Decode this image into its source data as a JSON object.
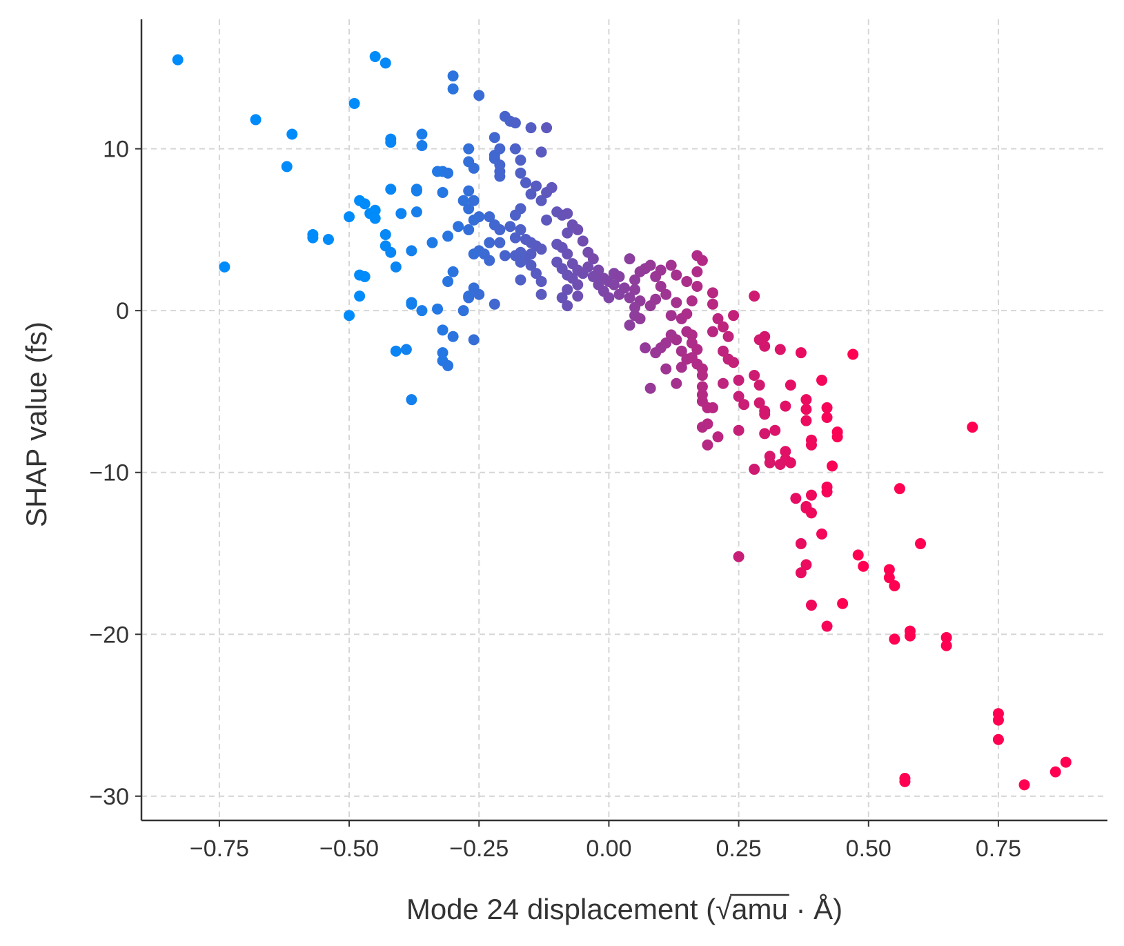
{
  "chart_data": {
    "type": "scatter",
    "title": "",
    "xlabel": "Mode 24 displacement (√amu · Å)",
    "xlabel_parts": {
      "before": "Mode 24 displacement (",
      "radicand": "amu",
      "after": " · Å)"
    },
    "ylabel": "SHAP value (fs)",
    "xlim": [
      -0.9,
      0.96
    ],
    "ylim": [
      -31.5,
      18
    ],
    "x_ticks": [
      -0.75,
      -0.5,
      -0.25,
      0.0,
      0.25,
      0.5,
      0.75
    ],
    "x_tick_labels": [
      "−0.75",
      "−0.50",
      "−0.25",
      "0.00",
      "0.25",
      "0.50",
      "0.75"
    ],
    "y_ticks": [
      10,
      0,
      -10,
      -20,
      -30
    ],
    "y_tick_labels": [
      "10",
      "0",
      "−10",
      "−20",
      "−30"
    ],
    "grid": true,
    "color_scale": {
      "low": "#008bfb",
      "high": "#ff0052",
      "cmin": -0.45,
      "cmax": 0.45
    },
    "points": [
      [
        -0.83,
        15.5
      ],
      [
        -0.45,
        15.7
      ],
      [
        -0.43,
        15.3
      ],
      [
        -0.3,
        14.5
      ],
      [
        -0.3,
        13.7
      ],
      [
        -0.25,
        13.3
      ],
      [
        -0.49,
        12.8
      ],
      [
        -0.68,
        11.8
      ],
      [
        -0.61,
        10.9
      ],
      [
        -0.62,
        8.9
      ],
      [
        -0.74,
        2.7
      ],
      [
        -0.57,
        4.7
      ],
      [
        -0.57,
        4.5
      ],
      [
        -0.54,
        4.4
      ],
      [
        -0.5,
        5.8
      ],
      [
        -0.48,
        6.8
      ],
      [
        -0.47,
        6.6
      ],
      [
        -0.46,
        6.0
      ],
      [
        -0.45,
        6.2
      ],
      [
        -0.45,
        5.7
      ],
      [
        -0.43,
        4.7
      ],
      [
        -0.43,
        4.0
      ],
      [
        -0.42,
        3.6
      ],
      [
        -0.41,
        2.7
      ],
      [
        -0.48,
        2.2
      ],
      [
        -0.47,
        2.1
      ],
      [
        -0.48,
        0.9
      ],
      [
        -0.5,
        -0.3
      ],
      [
        -0.42,
        10.6
      ],
      [
        -0.42,
        10.4
      ],
      [
        -0.42,
        7.5
      ],
      [
        -0.4,
        6.0
      ],
      [
        -0.36,
        10.9
      ],
      [
        -0.36,
        10.2
      ],
      [
        -0.37,
        7.5
      ],
      [
        -0.37,
        7.4
      ],
      [
        -0.37,
        6.1
      ],
      [
        -0.38,
        3.7
      ],
      [
        -0.38,
        0.5
      ],
      [
        -0.38,
        0.4
      ],
      [
        -0.36,
        0.0
      ],
      [
        -0.34,
        4.2
      ],
      [
        -0.33,
        8.6
      ],
      [
        -0.32,
        8.6
      ],
      [
        -0.31,
        8.5
      ],
      [
        -0.32,
        7.3
      ],
      [
        -0.31,
        4.6
      ],
      [
        -0.3,
        2.4
      ],
      [
        -0.31,
        1.8
      ],
      [
        -0.33,
        0.1
      ],
      [
        -0.32,
        -1.2
      ],
      [
        -0.3,
        -1.6
      ],
      [
        -0.32,
        -2.6
      ],
      [
        -0.32,
        -3.1
      ],
      [
        -0.31,
        -3.4
      ],
      [
        -0.41,
        -2.5
      ],
      [
        -0.39,
        -2.4
      ],
      [
        -0.38,
        -5.5
      ],
      [
        -0.27,
        10.0
      ],
      [
        -0.27,
        9.2
      ],
      [
        -0.26,
        8.8
      ],
      [
        -0.27,
        7.4
      ],
      [
        -0.26,
        6.8
      ],
      [
        -0.27,
        6.3
      ],
      [
        -0.25,
        5.8
      ],
      [
        -0.26,
        5.6
      ],
      [
        -0.27,
        5.0
      ],
      [
        -0.28,
        6.8
      ],
      [
        -0.29,
        5.2
      ],
      [
        -0.25,
        3.7
      ],
      [
        -0.26,
        3.5
      ],
      [
        -0.26,
        1.4
      ],
      [
        -0.25,
        1.0
      ],
      [
        -0.27,
        0.9
      ],
      [
        -0.27,
        0.8
      ],
      [
        -0.28,
        0.0
      ],
      [
        -0.26,
        -1.8
      ],
      [
        -0.22,
        10.7
      ],
      [
        -0.21,
        10.0
      ],
      [
        -0.22,
        9.6
      ],
      [
        -0.22,
        9.4
      ],
      [
        -0.21,
        9.0
      ],
      [
        -0.21,
        8.6
      ],
      [
        -0.21,
        8.3
      ],
      [
        -0.23,
        5.8
      ],
      [
        -0.22,
        5.3
      ],
      [
        -0.21,
        5.0
      ],
      [
        -0.23,
        4.2
      ],
      [
        -0.21,
        4.2
      ],
      [
        -0.2,
        3.4
      ],
      [
        -0.24,
        3.5
      ],
      [
        -0.23,
        3.1
      ],
      [
        -0.22,
        0.4
      ],
      [
        -0.2,
        12.0
      ],
      [
        -0.19,
        11.7
      ],
      [
        -0.18,
        11.6
      ],
      [
        -0.18,
        10.0
      ],
      [
        -0.17,
        9.3
      ],
      [
        -0.15,
        11.3
      ],
      [
        -0.12,
        11.3
      ],
      [
        -0.13,
        9.8
      ],
      [
        -0.17,
        8.5
      ],
      [
        -0.16,
        7.9
      ],
      [
        -0.14,
        7.7
      ],
      [
        -0.15,
        7.2
      ],
      [
        -0.13,
        6.8
      ],
      [
        -0.12,
        7.3
      ],
      [
        -0.11,
        7.6
      ],
      [
        -0.12,
        5.6
      ],
      [
        -0.17,
        6.3
      ],
      [
        -0.18,
        5.9
      ],
      [
        -0.19,
        5.2
      ],
      [
        -0.17,
        5.0
      ],
      [
        -0.18,
        4.5
      ],
      [
        -0.16,
        4.4
      ],
      [
        -0.15,
        4.2
      ],
      [
        -0.14,
        4.0
      ],
      [
        -0.13,
        3.8
      ],
      [
        -0.15,
        3.5
      ],
      [
        -0.16,
        3.3
      ],
      [
        -0.17,
        3.6
      ],
      [
        -0.18,
        3.4
      ],
      [
        -0.17,
        3.0
      ],
      [
        -0.15,
        2.8
      ],
      [
        -0.14,
        2.3
      ],
      [
        -0.13,
        1.8
      ],
      [
        -0.17,
        1.9
      ],
      [
        -0.13,
        1.0
      ],
      [
        -0.1,
        6.1
      ],
      [
        -0.09,
        5.9
      ],
      [
        -0.08,
        6.0
      ],
      [
        -0.07,
        5.3
      ],
      [
        -0.06,
        5.0
      ],
      [
        -0.08,
        4.8
      ],
      [
        -0.1,
        4.1
      ],
      [
        -0.09,
        3.9
      ],
      [
        -0.08,
        3.5
      ],
      [
        -0.1,
        3.0
      ],
      [
        -0.09,
        2.6
      ],
      [
        -0.07,
        2.9
      ],
      [
        -0.06,
        2.5
      ],
      [
        -0.08,
        2.2
      ],
      [
        -0.07,
        2.0
      ],
      [
        -0.05,
        2.3
      ],
      [
        -0.06,
        1.6
      ],
      [
        -0.08,
        1.3
      ],
      [
        -0.09,
        0.8
      ],
      [
        -0.06,
        0.9
      ],
      [
        -0.08,
        0.3
      ],
      [
        -0.05,
        4.3
      ],
      [
        -0.04,
        3.6
      ],
      [
        -0.03,
        3.2
      ],
      [
        -0.04,
        2.7
      ],
      [
        -0.02,
        2.5
      ],
      [
        -0.03,
        2.1
      ],
      [
        -0.01,
        2.0
      ],
      [
        -0.02,
        1.6
      ],
      [
        -0.01,
        1.2
      ],
      [
        0.0,
        1.8
      ],
      [
        0.01,
        2.3
      ],
      [
        0.02,
        2.1
      ],
      [
        0.01,
        1.6
      ],
      [
        0.03,
        1.4
      ],
      [
        0.02,
        1.0
      ],
      [
        0.04,
        0.8
      ],
      [
        0.0,
        0.8
      ],
      [
        0.05,
        1.9
      ],
      [
        0.04,
        3.2
      ],
      [
        0.06,
        2.4
      ],
      [
        0.07,
        2.6
      ],
      [
        0.08,
        2.8
      ],
      [
        0.05,
        1.3
      ],
      [
        0.06,
        0.6
      ],
      [
        0.05,
        0.2
      ],
      [
        0.05,
        -0.3
      ],
      [
        0.06,
        -0.5
      ],
      [
        0.04,
        -0.9
      ],
      [
        0.08,
        0.3
      ],
      [
        0.09,
        0.7
      ],
      [
        0.09,
        2.1
      ],
      [
        0.1,
        2.5
      ],
      [
        0.1,
        1.5
      ],
      [
        0.11,
        1.0
      ],
      [
        0.12,
        2.8
      ],
      [
        0.13,
        2.2
      ],
      [
        0.13,
        0.5
      ],
      [
        0.12,
        -0.3
      ],
      [
        0.14,
        -0.5
      ],
      [
        0.12,
        -1.5
      ],
      [
        0.13,
        -1.8
      ],
      [
        0.11,
        -2.0
      ],
      [
        0.1,
        -2.3
      ],
      [
        0.09,
        -2.6
      ],
      [
        0.07,
        -2.3
      ],
      [
        0.08,
        -4.8
      ],
      [
        0.11,
        -3.6
      ],
      [
        0.14,
        -2.5
      ],
      [
        0.15,
        -3.0
      ],
      [
        0.14,
        -3.5
      ],
      [
        0.13,
        -4.5
      ],
      [
        0.15,
        -1.3
      ],
      [
        0.16,
        -1.5
      ],
      [
        0.15,
        -0.2
      ],
      [
        0.16,
        0.6
      ],
      [
        0.15,
        1.8
      ],
      [
        0.17,
        1.5
      ],
      [
        0.17,
        2.4
      ],
      [
        0.17,
        3.4
      ],
      [
        0.18,
        3.1
      ],
      [
        0.16,
        -2.0
      ],
      [
        0.17,
        -2.4
      ],
      [
        0.16,
        -2.9
      ],
      [
        0.17,
        -3.3
      ],
      [
        0.18,
        -3.6
      ],
      [
        0.18,
        -4.0
      ],
      [
        0.18,
        -4.7
      ],
      [
        0.18,
        -5.2
      ],
      [
        0.18,
        -5.6
      ],
      [
        0.19,
        -6.0
      ],
      [
        0.2,
        -6.0
      ],
      [
        0.19,
        -7.0
      ],
      [
        0.18,
        -7.2
      ],
      [
        0.19,
        -8.3
      ],
      [
        0.21,
        -7.8
      ],
      [
        0.2,
        1.1
      ],
      [
        0.2,
        0.4
      ],
      [
        0.21,
        -0.5
      ],
      [
        0.2,
        -1.3
      ],
      [
        0.22,
        -1.0
      ],
      [
        0.23,
        -1.6
      ],
      [
        0.22,
        -2.5
      ],
      [
        0.23,
        -3.0
      ],
      [
        0.24,
        -3.2
      ],
      [
        0.22,
        -4.5
      ],
      [
        0.24,
        -0.3
      ],
      [
        0.25,
        -4.3
      ],
      [
        0.25,
        -5.3
      ],
      [
        0.26,
        -5.8
      ],
      [
        0.25,
        -7.4
      ],
      [
        0.25,
        -15.2
      ],
      [
        0.28,
        0.9
      ],
      [
        0.28,
        -4.0
      ],
      [
        0.29,
        -4.6
      ],
      [
        0.29,
        -1.8
      ],
      [
        0.3,
        -1.6
      ],
      [
        0.3,
        -2.2
      ],
      [
        0.29,
        -5.7
      ],
      [
        0.3,
        -6.2
      ],
      [
        0.3,
        -6.4
      ],
      [
        0.3,
        -7.6
      ],
      [
        0.31,
        -9.0
      ],
      [
        0.31,
        -9.4
      ],
      [
        0.28,
        -9.8
      ],
      [
        0.32,
        -7.4
      ],
      [
        0.33,
        -2.4
      ],
      [
        0.34,
        -5.9
      ],
      [
        0.35,
        -4.6
      ],
      [
        0.34,
        -8.7
      ],
      [
        0.34,
        -9.2
      ],
      [
        0.33,
        -9.5
      ],
      [
        0.35,
        -9.4
      ],
      [
        0.36,
        -11.6
      ],
      [
        0.37,
        -14.4
      ],
      [
        0.37,
        -16.2
      ],
      [
        0.38,
        -15.7
      ],
      [
        0.38,
        -12.1
      ],
      [
        0.38,
        -12.2
      ],
      [
        0.39,
        -12.5
      ],
      [
        0.39,
        -11.4
      ],
      [
        0.39,
        -8.0
      ],
      [
        0.39,
        -8.3
      ],
      [
        0.38,
        -6.8
      ],
      [
        0.38,
        -5.5
      ],
      [
        0.38,
        -6.1
      ],
      [
        0.37,
        -2.6
      ],
      [
        0.39,
        -18.2
      ],
      [
        0.41,
        -4.3
      ],
      [
        0.41,
        -13.8
      ],
      [
        0.42,
        -6.0
      ],
      [
        0.42,
        -6.6
      ],
      [
        0.42,
        -10.9
      ],
      [
        0.42,
        -11.2
      ],
      [
        0.43,
        -9.6
      ],
      [
        0.44,
        -7.5
      ],
      [
        0.44,
        -7.8
      ],
      [
        0.42,
        -19.5
      ],
      [
        0.45,
        -18.1
      ],
      [
        0.47,
        -2.7
      ],
      [
        0.48,
        -15.1
      ],
      [
        0.49,
        -15.8
      ],
      [
        0.54,
        -16.0
      ],
      [
        0.54,
        -16.5
      ],
      [
        0.55,
        -17.0
      ],
      [
        0.55,
        -20.3
      ],
      [
        0.56,
        -11.0
      ],
      [
        0.57,
        -28.9
      ],
      [
        0.57,
        -29.1
      ],
      [
        0.58,
        -19.8
      ],
      [
        0.58,
        -20.1
      ],
      [
        0.6,
        -14.4
      ],
      [
        0.65,
        -20.2
      ],
      [
        0.65,
        -20.7
      ],
      [
        0.7,
        -7.2
      ],
      [
        0.75,
        -24.9
      ],
      [
        0.75,
        -25.3
      ],
      [
        0.75,
        -26.5
      ],
      [
        0.8,
        -29.3
      ],
      [
        0.86,
        -28.5
      ],
      [
        0.88,
        -27.9
      ]
    ]
  }
}
